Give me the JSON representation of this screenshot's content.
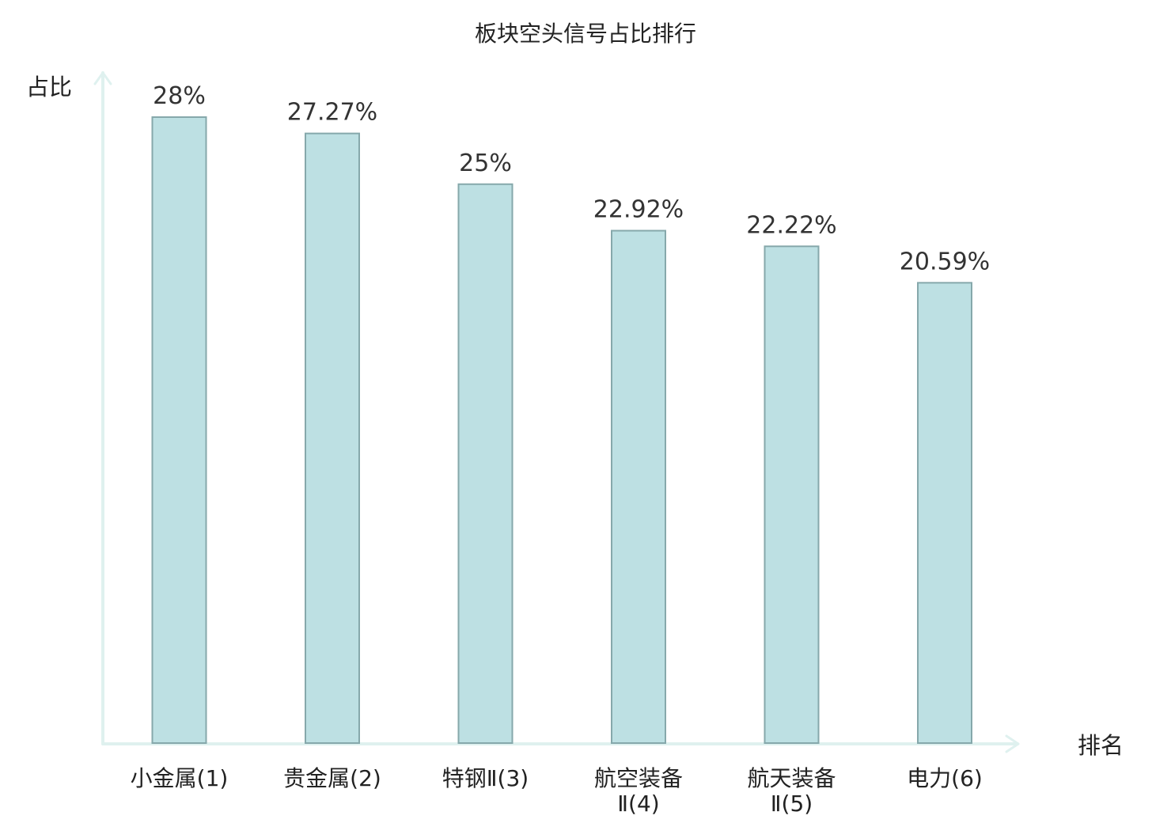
{
  "chart_data": {
    "type": "bar",
    "title": "板块空头信号占比排行",
    "xlabel": "排名",
    "ylabel": "占比",
    "categories": [
      [
        "小金属(1)"
      ],
      [
        "贵金属(2)"
      ],
      [
        "特钢Ⅱ(3)"
      ],
      [
        "航空装备",
        "Ⅱ(4)"
      ],
      [
        "航天装备",
        "Ⅱ(5)"
      ],
      [
        "电力(6)"
      ]
    ],
    "values": [
      28,
      27.27,
      25,
      22.92,
      22.22,
      20.59
    ],
    "value_labels": [
      "28%",
      "27.27%",
      "25%",
      "22.92%",
      "22.22%",
      "20.59%"
    ],
    "ylim": [
      0,
      28
    ],
    "grid": false,
    "legend": "none",
    "highlight_index": 5
  },
  "colors": {
    "bar_fill": "#bde0e3",
    "bar_stroke": "#86a8ab",
    "axis": "#dff1ef",
    "text": "#222222",
    "value_text": "#333333",
    "highlight_text": "#e8141b"
  }
}
